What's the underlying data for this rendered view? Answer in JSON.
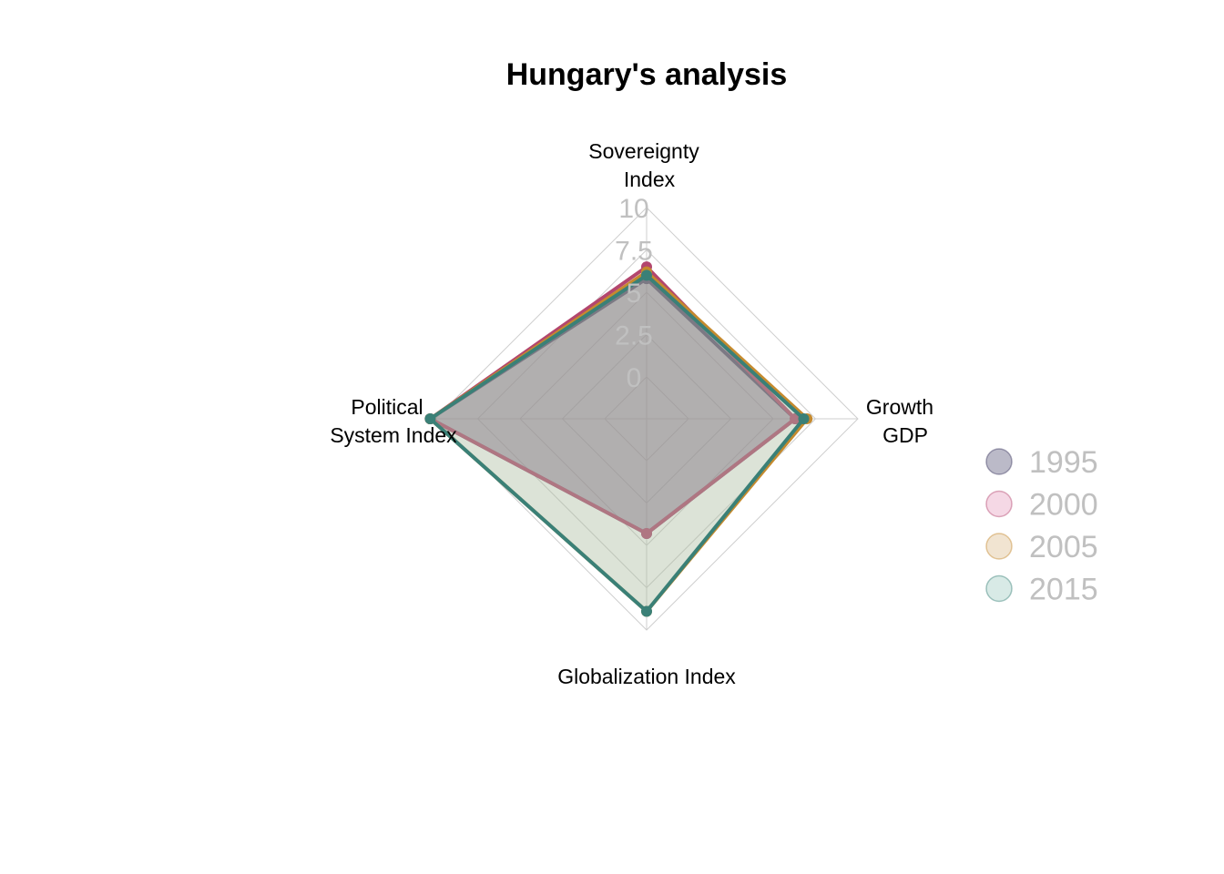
{
  "chart_data": {
    "type": "radar",
    "title": "Hungary's analysis",
    "axes": [
      [
        "Sovereignty",
        "Index"
      ],
      [
        "Growth",
        "GDP"
      ],
      [
        "Globalization Index"
      ],
      [
        "Political",
        "System Index"
      ]
    ],
    "rlim": [
      0,
      10
    ],
    "ticks": [
      "0",
      "2.5",
      "5",
      "7.5",
      "10"
    ],
    "grid": true,
    "legend_position": "right",
    "series": [
      {
        "name": "1995",
        "values": [
          5.8,
          6.3,
          4.3,
          10.3
        ],
        "color": "#3d3a62",
        "fill": "#3d3a62"
      },
      {
        "name": "2000",
        "values": [
          6.5,
          6.3,
          4.3,
          10.3
        ],
        "color": "#b3466e",
        "fill": "#e28fb5"
      },
      {
        "name": "2005",
        "values": [
          6.2,
          7.0,
          8.9,
          10.3
        ],
        "color": "#c58a2e",
        "fill": "#d8b27a"
      },
      {
        "name": "2015",
        "values": [
          6.0,
          6.8,
          8.9,
          10.3
        ],
        "color": "#3a8077",
        "fill": "#8fc2b8"
      }
    ]
  }
}
